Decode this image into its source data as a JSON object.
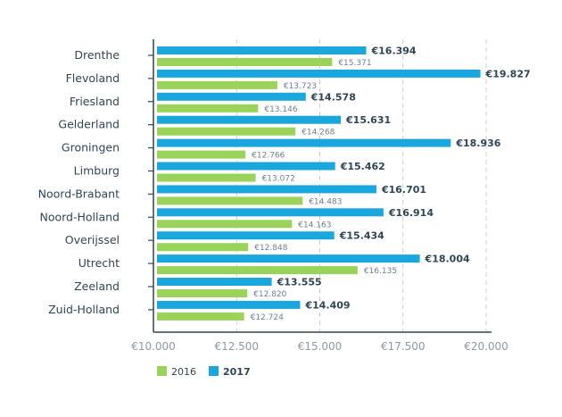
{
  "chart_data": {
    "type": "bar",
    "orientation": "horizontal",
    "categories": [
      "Drenthe",
      "Flevoland",
      "Friesland",
      "Gelderland",
      "Groningen",
      "Limburg",
      "Noord-Brabant",
      "Noord-Holland",
      "Overijssel",
      "Utrecht",
      "Zeeland",
      "Zuid-Holland"
    ],
    "series": [
      {
        "name": "2017",
        "color": "#1aa7de",
        "values": [
          16394,
          19827,
          14578,
          15631,
          18936,
          15462,
          16701,
          16914,
          15434,
          18004,
          13555,
          14409
        ],
        "labels": [
          "€16.394",
          "€19.827",
          "€14.578",
          "€15.631",
          "€18.936",
          "€15.462",
          "€16.701",
          "€16.914",
          "€15.434",
          "€18.004",
          "€13.555",
          "€14.409"
        ]
      },
      {
        "name": "2016",
        "color": "#99d35a",
        "values": [
          15371,
          13723,
          13146,
          14268,
          12766,
          13072,
          14483,
          14163,
          12848,
          16135,
          12820,
          12724
        ],
        "labels": [
          "€15.371",
          "€13.723",
          "€13.146",
          "€14.268",
          "€12.766",
          "€13.072",
          "€14.483",
          "€14.163",
          "€12.848",
          "€16.135",
          "€12.820",
          "€12.724"
        ]
      }
    ],
    "xlim": [
      10000,
      20000
    ],
    "xticks": [
      10000,
      12500,
      15000,
      17500,
      20000
    ],
    "xtick_labels": [
      "€10.000",
      "€12.500",
      "€15.000",
      "€17.500",
      "€20.000"
    ],
    "grid": "vertical dashed",
    "legend": {
      "position": "bottom-left",
      "items": [
        {
          "name": "2016",
          "color": "#99d35a",
          "bold": false
        },
        {
          "name": "2017",
          "color": "#1aa7de",
          "bold": true
        }
      ]
    }
  }
}
